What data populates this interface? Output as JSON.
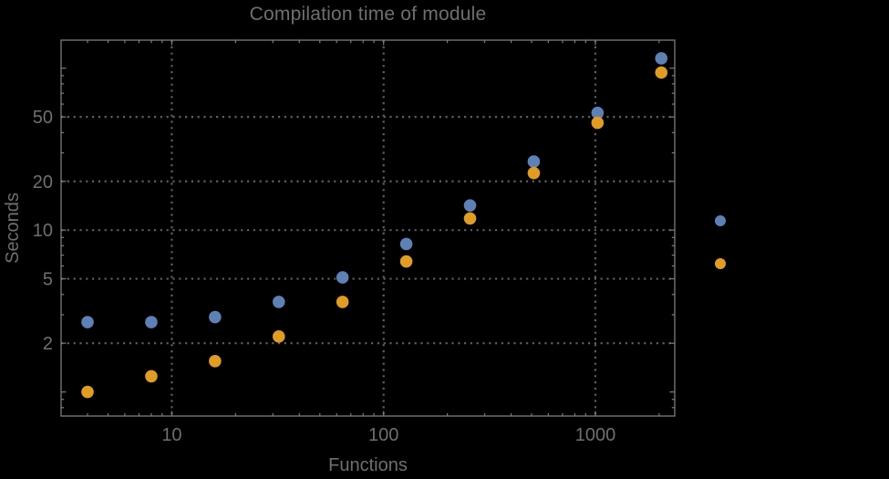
{
  "chart_data": {
    "type": "scatter",
    "title": "Compilation time of module",
    "xlabel": "Functions",
    "ylabel": "Seconds",
    "xscale": "log",
    "yscale": "log",
    "xlim": [
      3.0,
      2370
    ],
    "ylim": [
      0.71,
      149
    ],
    "grid": "dotted, at labeled ticks only",
    "x_ticks": {
      "labeled_values": [
        10,
        100,
        1000
      ],
      "labels": [
        "10",
        "100",
        "1000"
      ],
      "minor": [
        4,
        5,
        6,
        7,
        8,
        9,
        20,
        30,
        40,
        50,
        60,
        70,
        80,
        90,
        200,
        300,
        400,
        500,
        600,
        700,
        800,
        900,
        2000
      ]
    },
    "y_ticks": {
      "labeled_values": [
        2,
        5,
        10,
        20,
        50
      ],
      "labels": [
        "2",
        "5",
        "10",
        "20",
        "50"
      ],
      "unlabeled_major": [
        1,
        100
      ],
      "minor": [
        0.8,
        0.9,
        3,
        4,
        6,
        7,
        8,
        9,
        30,
        40,
        60,
        70,
        80,
        90
      ]
    },
    "gridline_values": {
      "x": [
        10,
        100,
        1000
      ],
      "y": [
        2,
        5,
        10,
        20,
        50
      ]
    },
    "series": [
      {
        "name": "series-blue",
        "color": "#5e81b5",
        "marker": "circle",
        "points": [
          [
            4,
            2.7
          ],
          [
            8,
            2.7
          ],
          [
            16,
            2.9
          ],
          [
            32,
            3.6
          ],
          [
            64,
            5.1
          ],
          [
            128,
            8.2
          ],
          [
            256,
            14.2
          ],
          [
            512,
            26.5
          ],
          [
            1024,
            53
          ],
          [
            2048,
            115
          ]
        ]
      },
      {
        "name": "series-orange",
        "color": "#e19c24",
        "marker": "circle",
        "points": [
          [
            4,
            1.0
          ],
          [
            8,
            1.25
          ],
          [
            16,
            1.55
          ],
          [
            32,
            2.2
          ],
          [
            64,
            3.6
          ],
          [
            128,
            6.4
          ],
          [
            256,
            11.8
          ],
          [
            512,
            22.5
          ],
          [
            1024,
            46
          ],
          [
            2048,
            94
          ]
        ]
      }
    ],
    "legend": {
      "position": "right-outside",
      "labels_visible": false,
      "markers": [
        {
          "series": "series-blue",
          "color": "#5e81b5"
        },
        {
          "series": "series-orange",
          "color": "#e19c24"
        }
      ]
    },
    "colors": {
      "background": "#000000",
      "frame": "#7d7d7d",
      "grid": "#5f5f5f",
      "text": "#6f6f6f"
    }
  }
}
